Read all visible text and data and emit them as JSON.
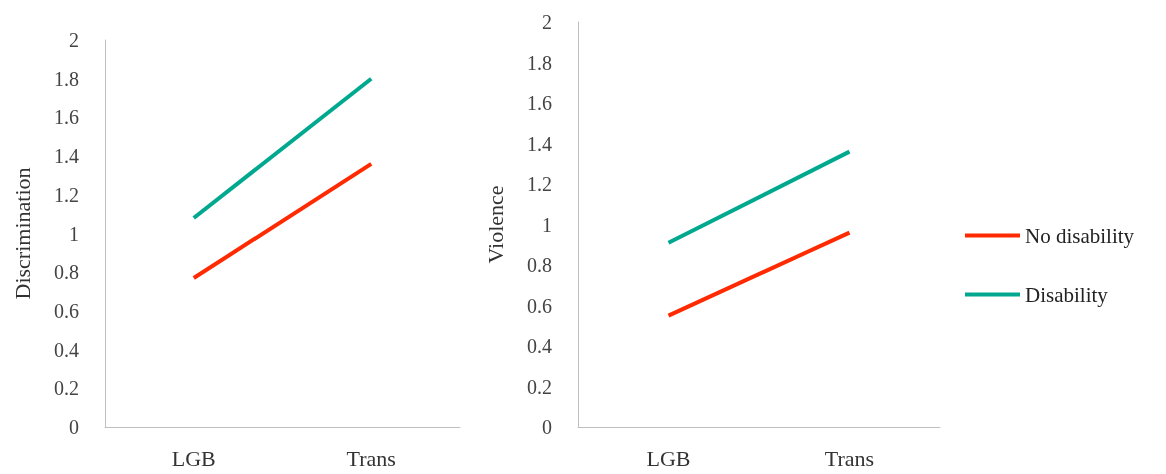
{
  "chart_data": [
    {
      "type": "line",
      "ylabel": "Discrimination",
      "categories": [
        "LGB",
        "Trans"
      ],
      "series": [
        {
          "color": "#ff2a00",
          "values": [
            0.77,
            1.36
          ]
        },
        {
          "color": "#00a88f",
          "values": [
            1.08,
            1.8
          ]
        }
      ],
      "ylim": [
        0,
        2
      ],
      "yticks": [
        0,
        0.2,
        0.4,
        0.6,
        0.8,
        1,
        1.2,
        1.4,
        1.6,
        1.8,
        2
      ],
      "grid": false,
      "legend": false,
      "marker": "none",
      "line_style": "solid"
    },
    {
      "type": "line",
      "ylabel": "Violence",
      "categories": [
        "LGB",
        "Trans"
      ],
      "series": [
        {
          "name": "No disability",
          "color": "#ff2a00",
          "values": [
            0.55,
            0.96
          ]
        },
        {
          "name": "Disability",
          "color": "#00a88f",
          "values": [
            0.91,
            1.36
          ]
        }
      ],
      "ylim": [
        0,
        2
      ],
      "yticks": [
        0,
        0.2,
        0.4,
        0.6,
        0.8,
        1,
        1.2,
        1.4,
        1.6,
        1.8,
        2
      ],
      "grid": false,
      "legend": "right",
      "marker": "none",
      "line_style": "solid"
    }
  ]
}
